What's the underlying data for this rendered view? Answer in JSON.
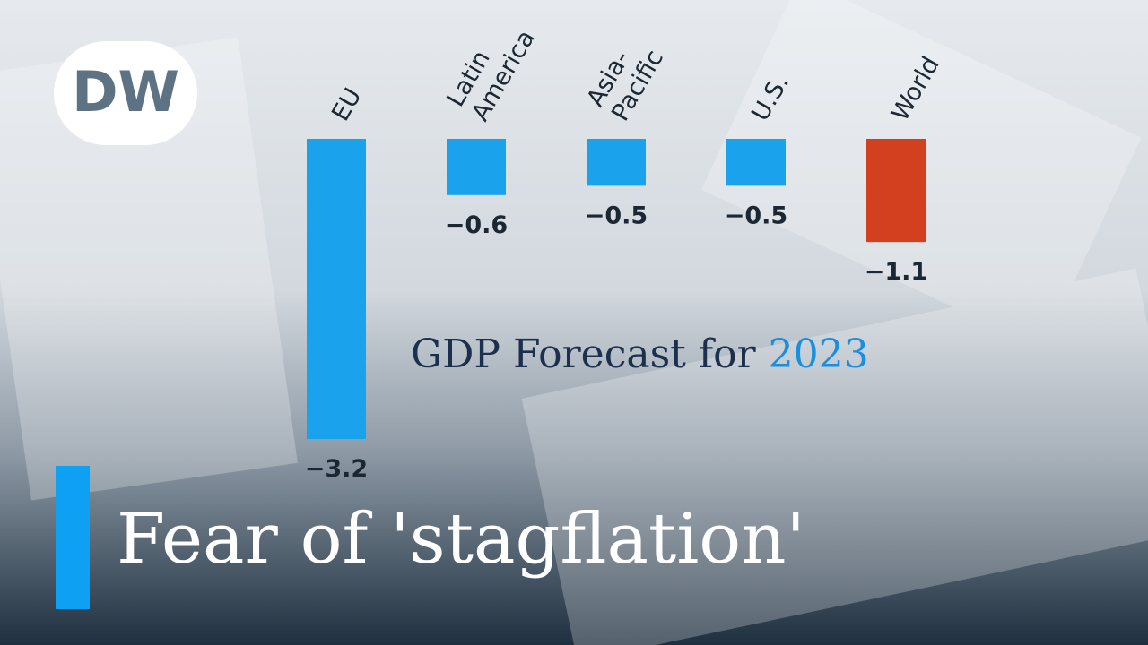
{
  "chart_data": {
    "type": "bar",
    "title": "GDP Forecast for 2023",
    "categories": [
      "EU",
      "Latin America",
      "Asia-Pacific",
      "U.S.",
      "World"
    ],
    "values": [
      -3.2,
      -0.6,
      -0.5,
      -0.5,
      -1.1
    ],
    "value_labels": [
      "−3.2",
      "−0.6",
      "−0.5",
      "−0.5",
      "−1.1"
    ],
    "colors": [
      "#1aa3ec",
      "#1aa3ec",
      "#1aa3ec",
      "#1aa3ec",
      "#d2401f"
    ],
    "ylim": [
      -3.2,
      0
    ]
  },
  "headline": "Fear of 'stagflation'",
  "logo": "DW"
}
